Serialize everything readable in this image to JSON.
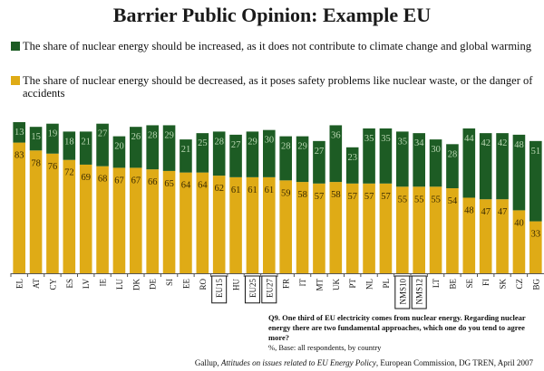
{
  "title": "Barrier Public Opinion: Example EU",
  "colors": {
    "increase": "#1d5c24",
    "decrease": "#dfab16"
  },
  "chart_data": {
    "type": "bar",
    "stacked": true,
    "orientation": "vertical",
    "categories": [
      "EL",
      "AT",
      "CY",
      "ES",
      "LV",
      "IE",
      "LU",
      "DK",
      "DE",
      "SI",
      "EE",
      "RO",
      "EU15",
      "HU",
      "EU25",
      "EU27",
      "FR",
      "IT",
      "MT",
      "UK",
      "PT",
      "NL",
      "PL",
      "NMS10",
      "NMS12",
      "LT",
      "BE",
      "SE",
      "FI",
      "SK",
      "CZ",
      "BG"
    ],
    "boxed_categories": [
      "EU15",
      "EU25",
      "EU27",
      "NMS10",
      "NMS12"
    ],
    "series": [
      {
        "name": "The share of nuclear energy should be decreased, as it poses safety problems like nuclear waste, or the danger of accidents",
        "color": "#dfab16",
        "values": [
          83,
          78,
          76,
          72,
          69,
          68,
          67,
          67,
          66,
          65,
          64,
          64,
          62,
          61,
          61,
          61,
          59,
          58,
          57,
          58,
          57,
          57,
          57,
          55,
          55,
          55,
          54,
          48,
          47,
          47,
          40,
          33
        ]
      },
      {
        "name": "The share of nuclear energy should be increased, as it does not contribute to climate change and global warming",
        "color": "#1d5c24",
        "values": [
          13,
          15,
          19,
          18,
          21,
          27,
          20,
          26,
          28,
          29,
          21,
          25,
          28,
          27,
          29,
          30,
          28,
          29,
          27,
          36,
          23,
          35,
          35,
          35,
          34,
          30,
          28,
          44,
          42,
          42,
          48,
          51
        ]
      }
    ],
    "ylim": [
      0,
      100
    ],
    "grid": false
  },
  "note": {
    "question": "Q9. One third of EU electricity comes from nuclear energy. Regarding nuclear energy there are two fundamental approaches, which one do you tend to agree more?",
    "base": "%, Base: all respondents, by country"
  },
  "source": {
    "prefix": "Gallup, ",
    "title": "Attitudes on issues related to EU Energy Policy",
    "suffix": ", European Commission, DG TREN, April 2007"
  }
}
